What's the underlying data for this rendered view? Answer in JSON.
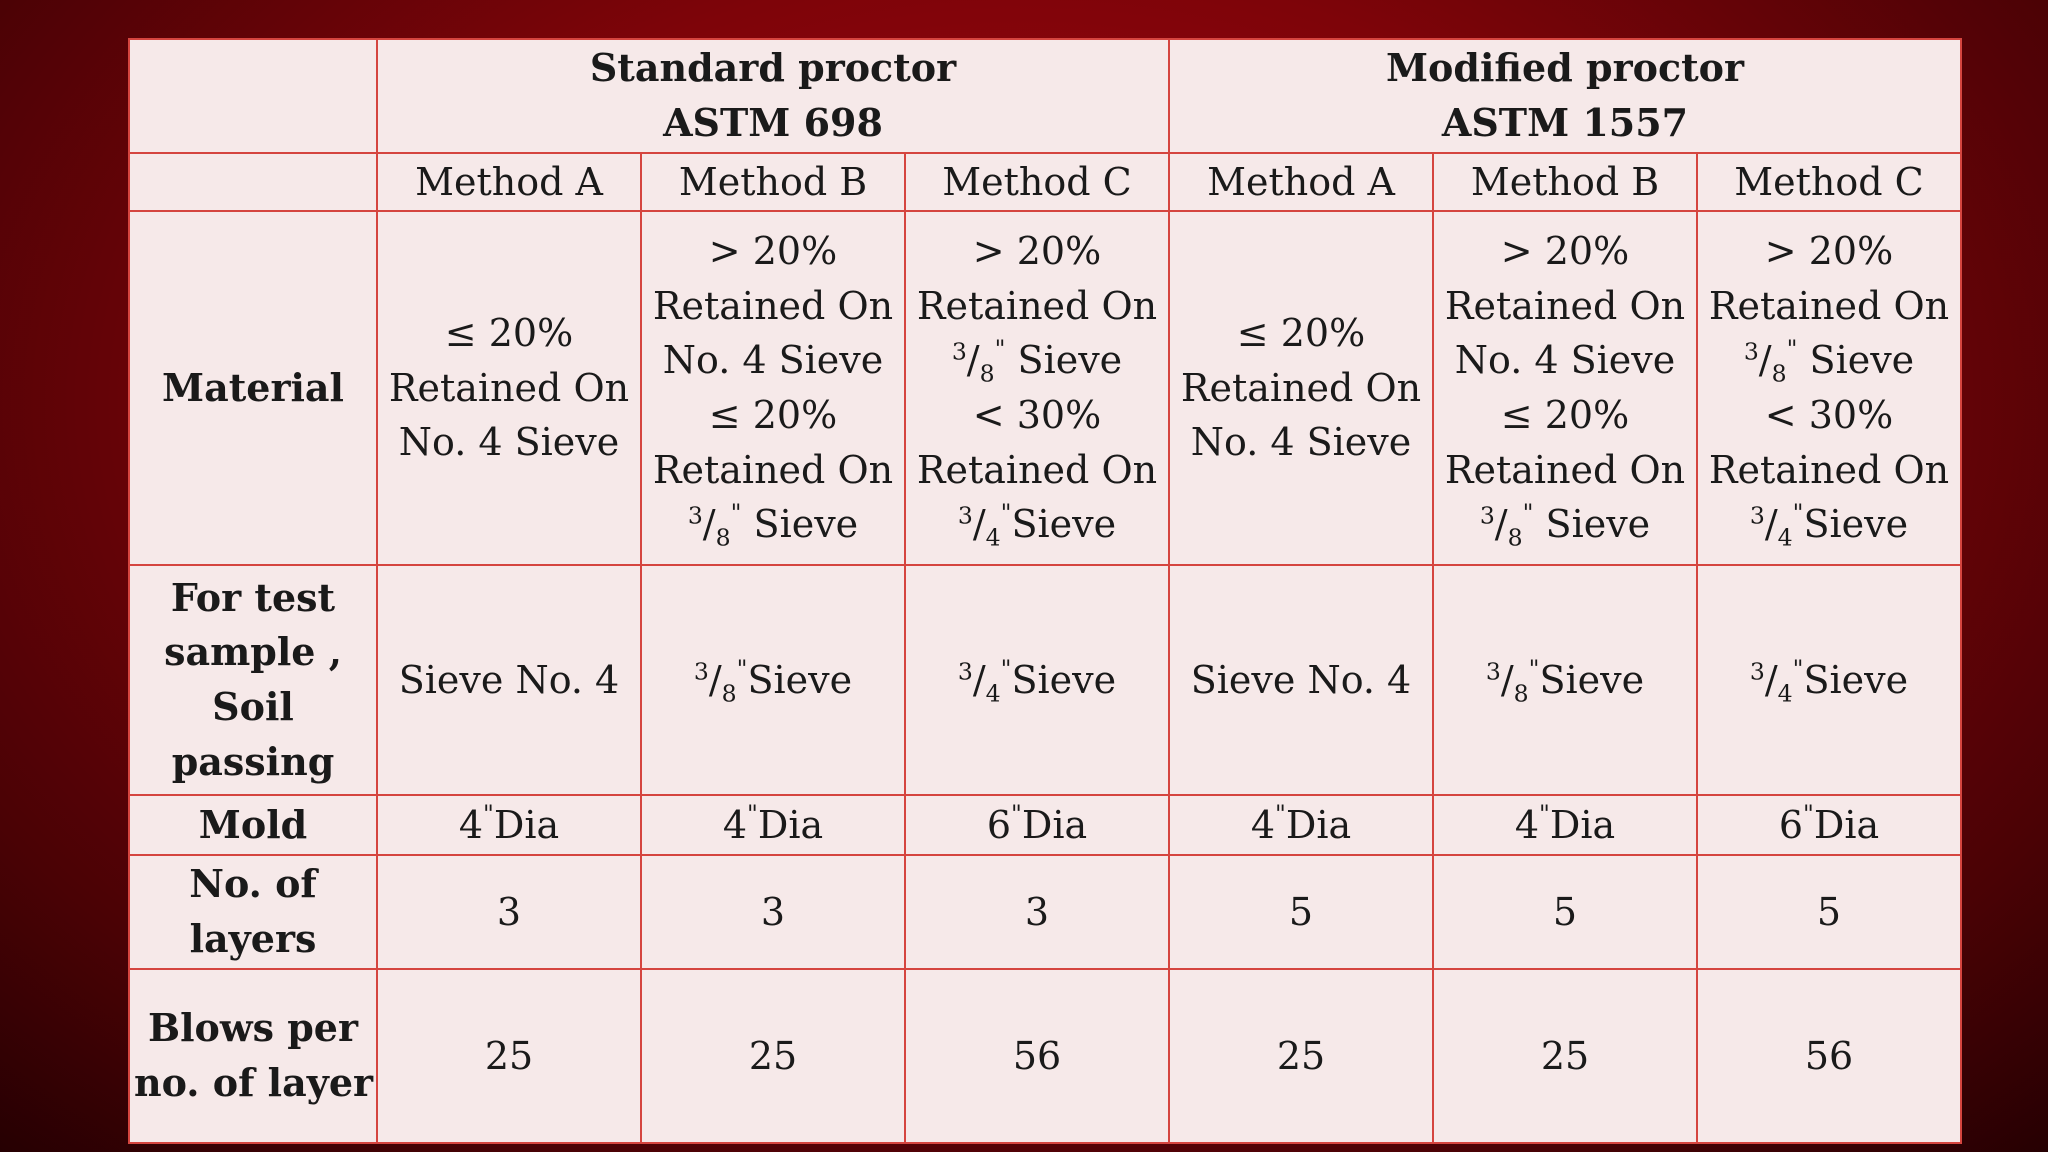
{
  "table": {
    "standard": {
      "title": "Standard proctor",
      "code": "ASTM 698"
    },
    "modified": {
      "title": "Modified proctor",
      "code": "ASTM 1557"
    },
    "methods": [
      "Method A",
      "Method B",
      "Method C",
      "Method A",
      "Method B",
      "Method C"
    ],
    "row_headers": {
      "material": "Material",
      "test_sample": [
        "For test",
        "sample ,",
        "Soil",
        "passing"
      ],
      "mold": "Mold",
      "layers": [
        "No. of",
        "layers"
      ],
      "blows": [
        "Blows per",
        "no. of layer"
      ]
    },
    "material": {
      "a": [
        "≤ 20%",
        "Retained On",
        "No. 4 Sieve"
      ],
      "b": [
        "> 20%",
        "Retained On",
        "No. 4 Sieve",
        "≤ 20%",
        "Retained On",
        "Sieve"
      ],
      "c": [
        "> 20%",
        "Retained On",
        "Sieve",
        "< 30%",
        "Retained On",
        "Sieve"
      ]
    },
    "test_sample": {
      "a": "Sieve No. 4",
      "b": "Sieve",
      "c": "Sieve"
    },
    "fractions": {
      "three": "3",
      "four": "4",
      "eight": "8",
      "slash": "/",
      "inch": "\""
    },
    "mold": {
      "a": "4",
      "b": "4",
      "c": "6",
      "unit": "Dia"
    },
    "layers": [
      "3",
      "3",
      "3",
      "5",
      "5",
      "5"
    ],
    "blows": [
      "25",
      "25",
      "56",
      "25",
      "25",
      "56"
    ]
  }
}
